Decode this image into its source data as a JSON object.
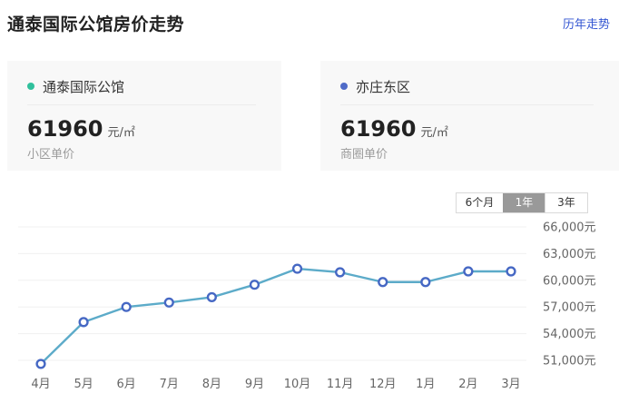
{
  "header": {
    "title": "通泰国际公馆房价走势",
    "history_link": "历年走势"
  },
  "cards": [
    {
      "name": "通泰国际公馆",
      "dot_color": "#30c09c",
      "price": "61960",
      "unit": "元/㎡",
      "label": "小区单价"
    },
    {
      "name": "亦庄东区",
      "dot_color": "#4f6bc8",
      "price": "61960",
      "unit": "元/㎡",
      "label": "商圈单价"
    }
  ],
  "tabs": [
    {
      "label": "6个月",
      "selected": false
    },
    {
      "label": "1年",
      "selected": true
    },
    {
      "label": "3年",
      "selected": false
    }
  ],
  "colors": {
    "link_blue": "#3355d2",
    "card_bg": "#f8f8f8",
    "selected_tab_bg": "#999999",
    "grid_line": "#f0f0f0"
  },
  "chart_data": {
    "type": "line",
    "title": "",
    "categories": [
      "4月",
      "5月",
      "6月",
      "7月",
      "8月",
      "9月",
      "10月",
      "11月",
      "12月",
      "1月",
      "2月",
      "3月"
    ],
    "values": [
      50600,
      55300,
      57000,
      57500,
      58100,
      59500,
      61300,
      60900,
      59800,
      59800,
      61000,
      61000
    ],
    "unit": "元/㎡",
    "xlabel": "",
    "ylabel": "",
    "ylim": [
      51000,
      66000
    ],
    "y_tick_values": [
      66000,
      63000,
      60000,
      57000,
      54000,
      51000
    ],
    "y_tick_labels": [
      "66,000元",
      "63,000元",
      "60,000元",
      "57,000元",
      "54,000元",
      "51,000元"
    ],
    "grid": true,
    "legend_position": "none",
    "line_color": "#5cabc9",
    "marker_color": "#4668c4",
    "marker_fill": "#ffffff"
  }
}
